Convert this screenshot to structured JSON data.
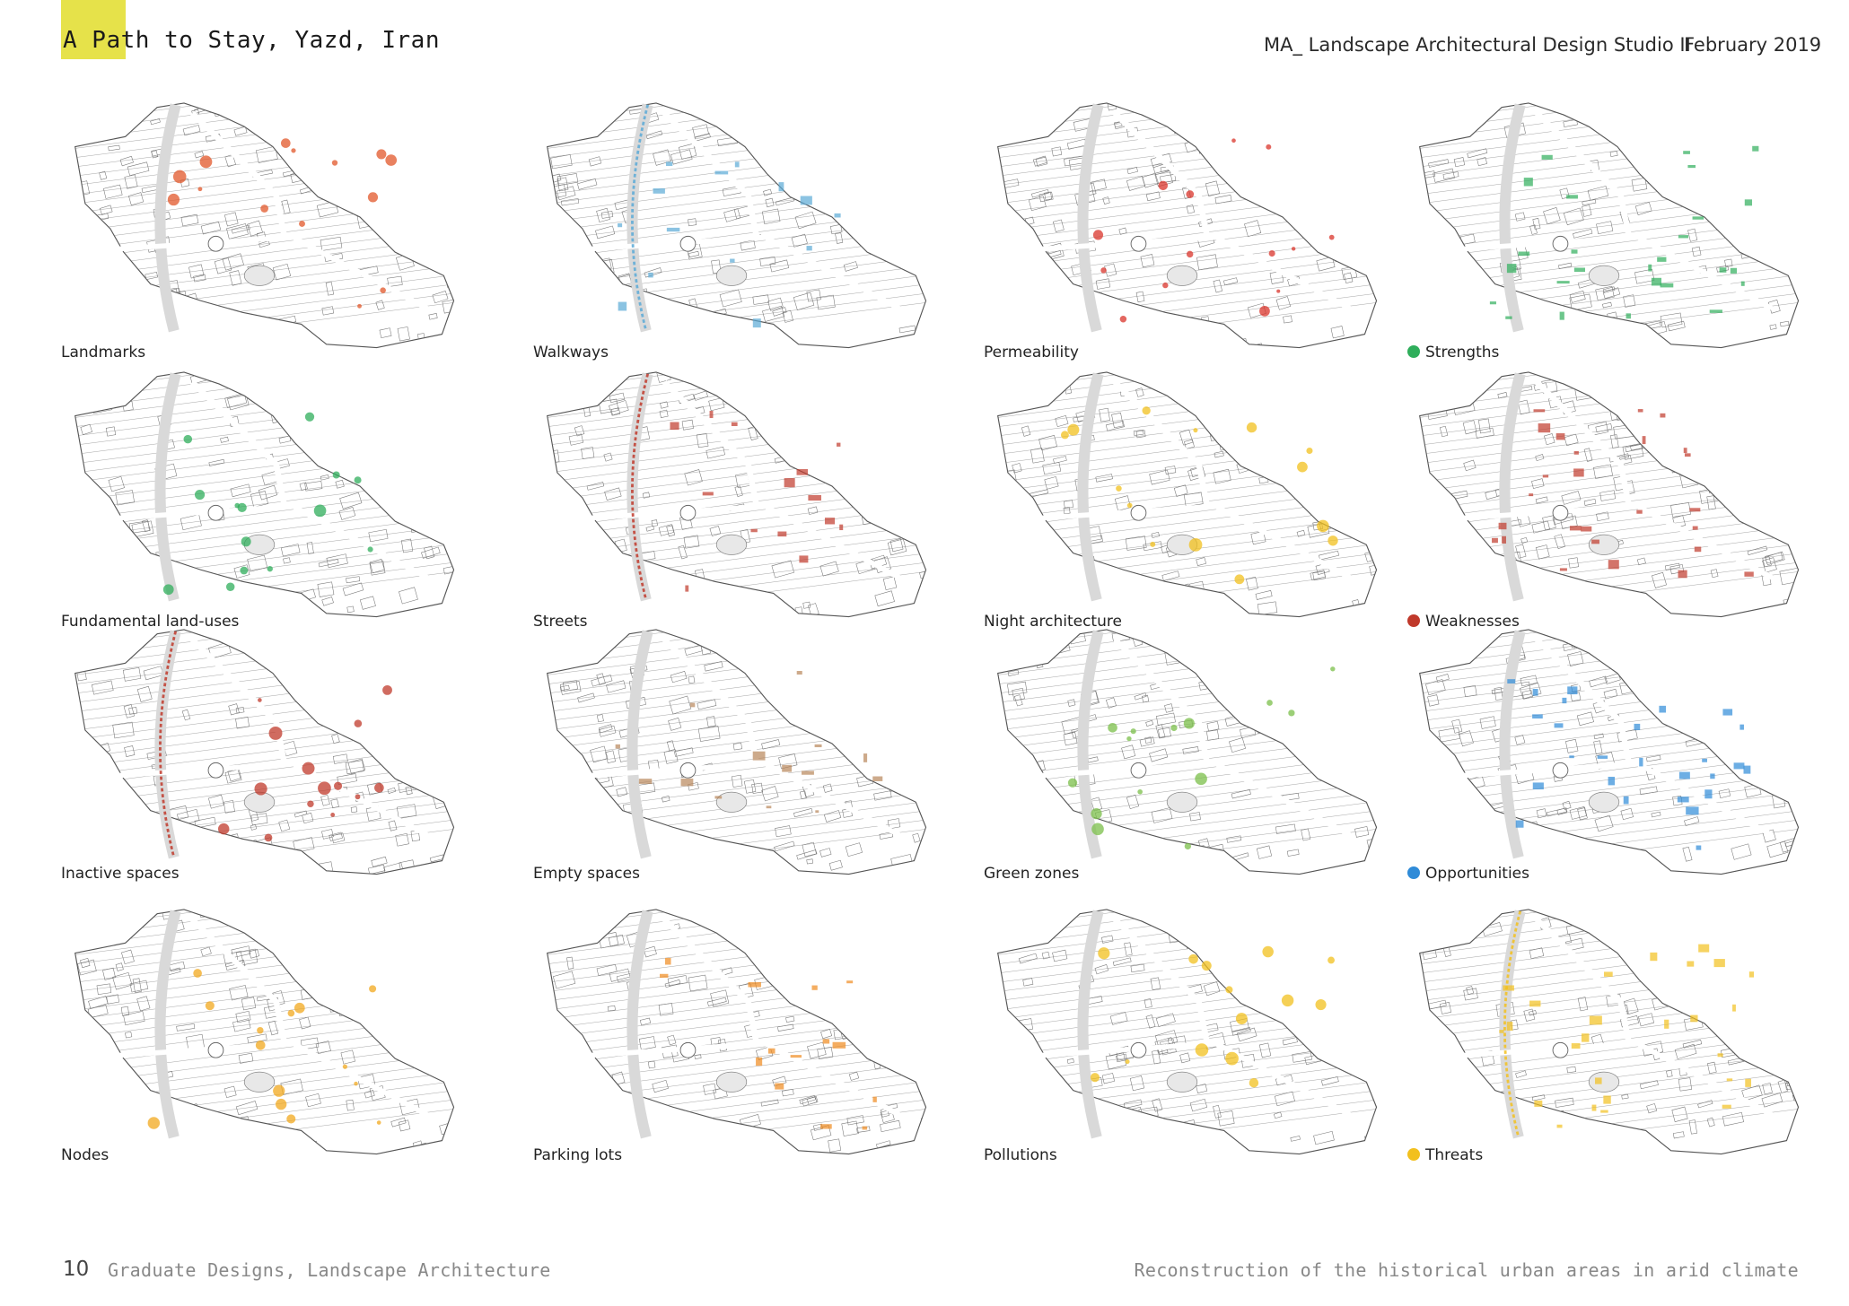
{
  "header": {
    "title": "A Path to Stay, Yazd, Iran",
    "studio": "MA_ Landscape Architectural Design Studio II",
    "date": "February 2019"
  },
  "footer": {
    "page_number": "10",
    "left_text": "Graduate Designs, Landscape Architecture",
    "right_text": "Reconstruction of the historical urban areas in arid climate"
  },
  "colors": {
    "highlight": "#e6e24a",
    "strengths": "#2fae5b",
    "weaknesses": "#c0392b",
    "opportunities": "#2f8bd8",
    "threats": "#f2c01e"
  },
  "maps": [
    {
      "label": "Landmarks",
      "overlay": "#e2572a"
    },
    {
      "label": "Walkways",
      "overlay": "#5aa9d6"
    },
    {
      "label": "Permeability",
      "overlay": "#d9342b"
    },
    {
      "label": "Strengths",
      "overlay": "#2fae5b",
      "legend": true
    },
    {
      "label": "Fundamental land-uses",
      "overlay": "#2fae5b"
    },
    {
      "label": "Streets",
      "overlay": "#c0392b"
    },
    {
      "label": "Night architecture",
      "overlay": "#f2c01e"
    },
    {
      "label": "Weaknesses",
      "overlay": "#c0392b",
      "legend": true
    },
    {
      "label": "Inactive spaces",
      "overlay": "#c0392b"
    },
    {
      "label": "Empty spaces",
      "overlay": "#b8865a"
    },
    {
      "label": "Green zones",
      "overlay": "#7bbf4a"
    },
    {
      "label": "Opportunities",
      "overlay": "#2f8bd8",
      "legend": true
    },
    {
      "label": "Nodes",
      "overlay": "#f2a81e"
    },
    {
      "label": "Parking lots",
      "overlay": "#f08a1e"
    },
    {
      "label": "Pollutions",
      "overlay": "#f2c01e"
    },
    {
      "label": "Threats",
      "overlay": "#f2c01e",
      "legend": true
    }
  ]
}
